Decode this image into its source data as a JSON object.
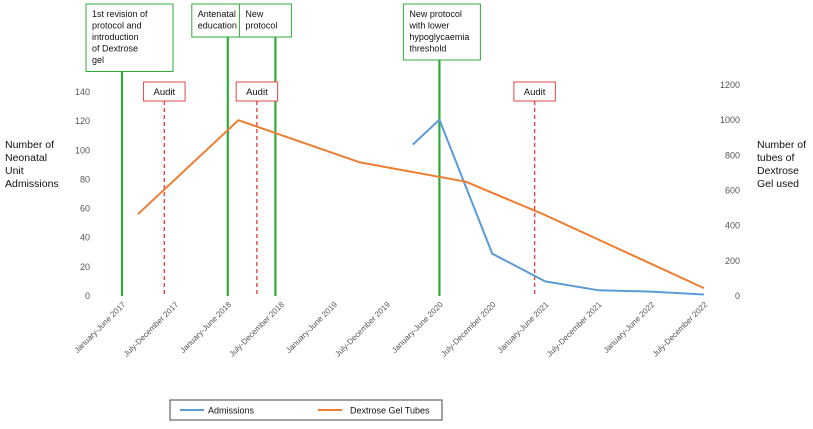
{
  "chart_data": {
    "type": "line",
    "categories": [
      "January-June 2017",
      "July-December 2017",
      "January-June 2018",
      "July-December 2018",
      "January-June 2019",
      "July-December 2019",
      "January-June 2020",
      "July-December 2020",
      "January-June 2021",
      "July-December 2021",
      "January-June 2022",
      "July-December 2022"
    ],
    "y_left": {
      "label": [
        "Number of",
        "Neonatal",
        "Unit",
        "Admissions"
      ],
      "lim": [
        0,
        140
      ],
      "ticks": [
        0,
        20,
        40,
        60,
        80,
        100,
        120,
        140
      ]
    },
    "y_right": {
      "label": [
        "Number of",
        "tubes of",
        "Dextrose",
        "Gel used"
      ],
      "lim": [
        0,
        1200
      ],
      "ticks": [
        0,
        200,
        400,
        600,
        800,
        1000,
        1200
      ]
    },
    "series": [
      {
        "name": "Admissions",
        "axis": "left",
        "color": "#5b9bd5",
        "points": [
          [
            5.5,
            104
          ],
          [
            6,
            121
          ],
          [
            7,
            29
          ],
          [
            8,
            10
          ],
          [
            9,
            4
          ],
          [
            10,
            3
          ],
          [
            11,
            1
          ]
        ]
      },
      {
        "name": "Dextrose Gel Tubes",
        "axis": "right",
        "color": "#ed7d31",
        "points": [
          [
            0.3,
            465
          ],
          [
            2.2,
            1000
          ],
          [
            4.5,
            760
          ],
          [
            6.5,
            650
          ],
          [
            8,
            460
          ],
          [
            11,
            45
          ]
        ]
      }
    ],
    "annotations": [
      {
        "kind": "intervention",
        "x": 0,
        "color": "#2eac3a",
        "label": [
          "1st revision of",
          "protocol and",
          "introduction",
          "of Dextrose",
          "gel"
        ]
      },
      {
        "kind": "intervention",
        "x": 2,
        "color": "#2eac3a",
        "label": [
          "Antenatal",
          "education"
        ]
      },
      {
        "kind": "intervention",
        "x": 2.9,
        "color": "#2eac3a",
        "label": [
          "New",
          "protocol"
        ]
      },
      {
        "kind": "intervention",
        "x": 6,
        "color": "#2eac3a",
        "label": [
          "New protocol",
          "with lower",
          "hypoglycaemia",
          "threshold"
        ]
      },
      {
        "kind": "audit",
        "x": 0.8,
        "color": "#e04848",
        "label": [
          "Audit"
        ]
      },
      {
        "kind": "audit",
        "x": 2.55,
        "color": "#e04848",
        "label": [
          "Audit"
        ]
      },
      {
        "kind": "audit",
        "x": 7.8,
        "color": "#e04848",
        "label": [
          "Audit"
        ]
      }
    ],
    "legend": {
      "position": "bottom"
    }
  }
}
